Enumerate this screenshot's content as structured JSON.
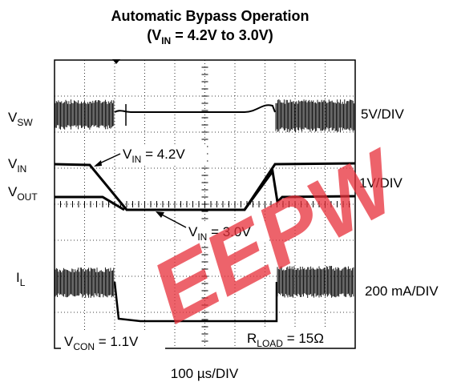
{
  "title": "Automatic Bypass Operation",
  "subtitle": {
    "open": "(V",
    "sub": "IN",
    "rest": " = 4.2V to 3.0V)"
  },
  "channels": [
    {
      "name": "V",
      "sub": "SW",
      "scale": "5V/DIV"
    },
    {
      "name": "V",
      "sub": "IN",
      "scale": "1V/DIV"
    },
    {
      "name": "V",
      "sub": "OUT"
    },
    {
      "name": "I",
      "sub": "L",
      "scale": "200 mA/DIV"
    }
  ],
  "annotations": [
    {
      "name": "V",
      "sub": "IN",
      "text": " = 4.2V"
    },
    {
      "name": "V",
      "sub": "IN",
      "text": " = 3.0V"
    },
    {
      "name": "V",
      "sub": "CON",
      "text": " = 1.1V"
    },
    {
      "name": "R",
      "sub": "LOAD",
      "text": " = 15Ω"
    }
  ],
  "time_scale": "100 µs/DIV",
  "watermark": "EEPW"
}
